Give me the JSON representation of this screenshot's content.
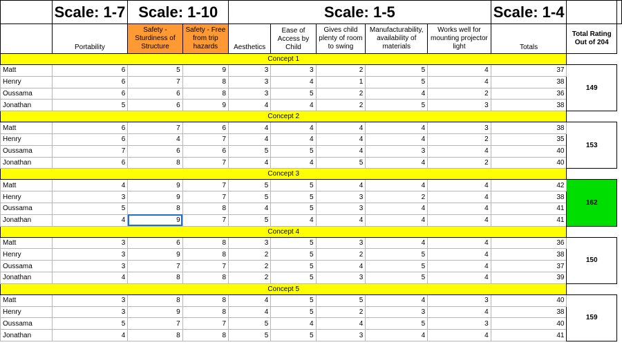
{
  "scales": [
    "Scale: 1-7",
    "Scale: 1-10",
    "Scale: 1-5",
    "Scale: 1-4"
  ],
  "headers": {
    "portability": "Portability",
    "safety_sturdiness": "Safety - Sturdiness of Structure",
    "safety_trip": "Safety - Free from trip hazards",
    "aesthetics": "Aesthetics",
    "ease_access": "Ease of Access by Child",
    "room_swing": "Gives child plenty of room to swing",
    "manufacturability": "Manufacturability, availability of materials",
    "projector": "Works well for mounting projector light",
    "totals": "Totals",
    "total_rating": "Total Rating Out of 204"
  },
  "colors": {
    "concept_band": "#ffff00",
    "safety_header": "#ff9933",
    "best_total": "#00dd00",
    "selection": "#1f6fd1"
  },
  "concepts": [
    {
      "label": "Concept 1",
      "total": "149",
      "rows": [
        [
          "Matt",
          "6",
          "5",
          "9",
          "3",
          "3",
          "2",
          "5",
          "4",
          "37"
        ],
        [
          "Henry",
          "6",
          "7",
          "8",
          "3",
          "4",
          "1",
          "5",
          "4",
          "38"
        ],
        [
          "Oussama",
          "6",
          "6",
          "8",
          "3",
          "5",
          "2",
          "4",
          "2",
          "36"
        ],
        [
          "Jonathan",
          "5",
          "6",
          "9",
          "4",
          "4",
          "2",
          "5",
          "3",
          "38"
        ]
      ]
    },
    {
      "label": "Concept 2",
      "total": "153",
      "rows": [
        [
          "Matt",
          "6",
          "7",
          "6",
          "4",
          "4",
          "4",
          "4",
          "3",
          "38"
        ],
        [
          "Henry",
          "6",
          "4",
          "7",
          "4",
          "4",
          "4",
          "4",
          "2",
          "35"
        ],
        [
          "Oussama",
          "7",
          "6",
          "6",
          "5",
          "5",
          "4",
          "3",
          "4",
          "40"
        ],
        [
          "Jonathan",
          "6",
          "8",
          "7",
          "4",
          "4",
          "5",
          "4",
          "2",
          "40"
        ]
      ]
    },
    {
      "label": "Concept 3",
      "total": "162",
      "rows": [
        [
          "Matt",
          "4",
          "9",
          "7",
          "5",
          "5",
          "4",
          "4",
          "4",
          "42"
        ],
        [
          "Henry",
          "3",
          "9",
          "7",
          "5",
          "5",
          "3",
          "2",
          "4",
          "38"
        ],
        [
          "Oussama",
          "5",
          "8",
          "8",
          "4",
          "5",
          "3",
          "4",
          "4",
          "41"
        ],
        [
          "Jonathan",
          "4",
          "9",
          "7",
          "5",
          "4",
          "4",
          "4",
          "4",
          "41"
        ]
      ]
    },
    {
      "label": "Concept 4",
      "total": "150",
      "rows": [
        [
          "Matt",
          "3",
          "6",
          "8",
          "3",
          "5",
          "3",
          "4",
          "4",
          "36"
        ],
        [
          "Henry",
          "3",
          "9",
          "8",
          "2",
          "5",
          "2",
          "5",
          "4",
          "38"
        ],
        [
          "Oussama",
          "3",
          "7",
          "7",
          "2",
          "5",
          "4",
          "5",
          "4",
          "37"
        ],
        [
          "Jonathan",
          "4",
          "8",
          "8",
          "2",
          "5",
          "3",
          "5",
          "4",
          "39"
        ]
      ]
    },
    {
      "label": "Concept 5",
      "total": "159",
      "rows": [
        [
          "Matt",
          "3",
          "8",
          "8",
          "4",
          "5",
          "5",
          "4",
          "3",
          "40"
        ],
        [
          "Henry",
          "3",
          "9",
          "8",
          "4",
          "5",
          "2",
          "3",
          "4",
          "38"
        ],
        [
          "Oussama",
          "5",
          "7",
          "7",
          "5",
          "4",
          "4",
          "5",
          "3",
          "40"
        ],
        [
          "Jonathan",
          "4",
          "8",
          "8",
          "5",
          "5",
          "3",
          "4",
          "4",
          "41"
        ]
      ]
    }
  ]
}
